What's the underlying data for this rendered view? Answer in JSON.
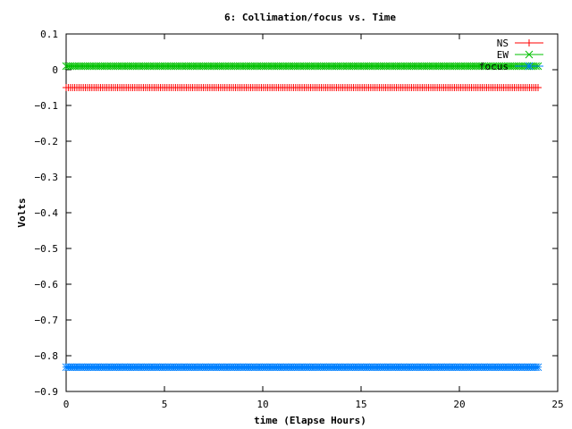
{
  "chart_data": {
    "type": "line",
    "title": "6: Collimation/focus vs. Time",
    "xlabel": "time (Elapse Hours)",
    "ylabel": "Volts",
    "xlim": [
      0,
      25
    ],
    "ylim": [
      -0.9,
      0.1
    ],
    "xticks": [
      0,
      5,
      10,
      15,
      20,
      25
    ],
    "yticks": [
      0.1,
      0,
      -0.1,
      -0.2,
      -0.3,
      -0.4,
      -0.5,
      -0.6,
      -0.7,
      -0.8,
      -0.9
    ],
    "ytick_labels": [
      "0.1",
      "0",
      "−0.1",
      "−0.2",
      "−0.3",
      "−0.4",
      "−0.5",
      "−0.6",
      "−0.7",
      "−0.8",
      "−0.9"
    ],
    "grid": false,
    "legend_position": "top-right",
    "series": [
      {
        "name": "NS",
        "color": "#ff0000",
        "marker": "plus",
        "x": [
          0,
          24
        ],
        "values": [
          -0.05,
          -0.05
        ]
      },
      {
        "name": "EW",
        "color": "#00c000",
        "marker": "cross",
        "x": [
          0,
          24
        ],
        "values": [
          0.01,
          0.01
        ]
      },
      {
        "name": "focus",
        "color": "#0080ff",
        "marker": "star",
        "x": [
          0,
          24
        ],
        "values": [
          -0.832,
          -0.832
        ]
      }
    ]
  }
}
